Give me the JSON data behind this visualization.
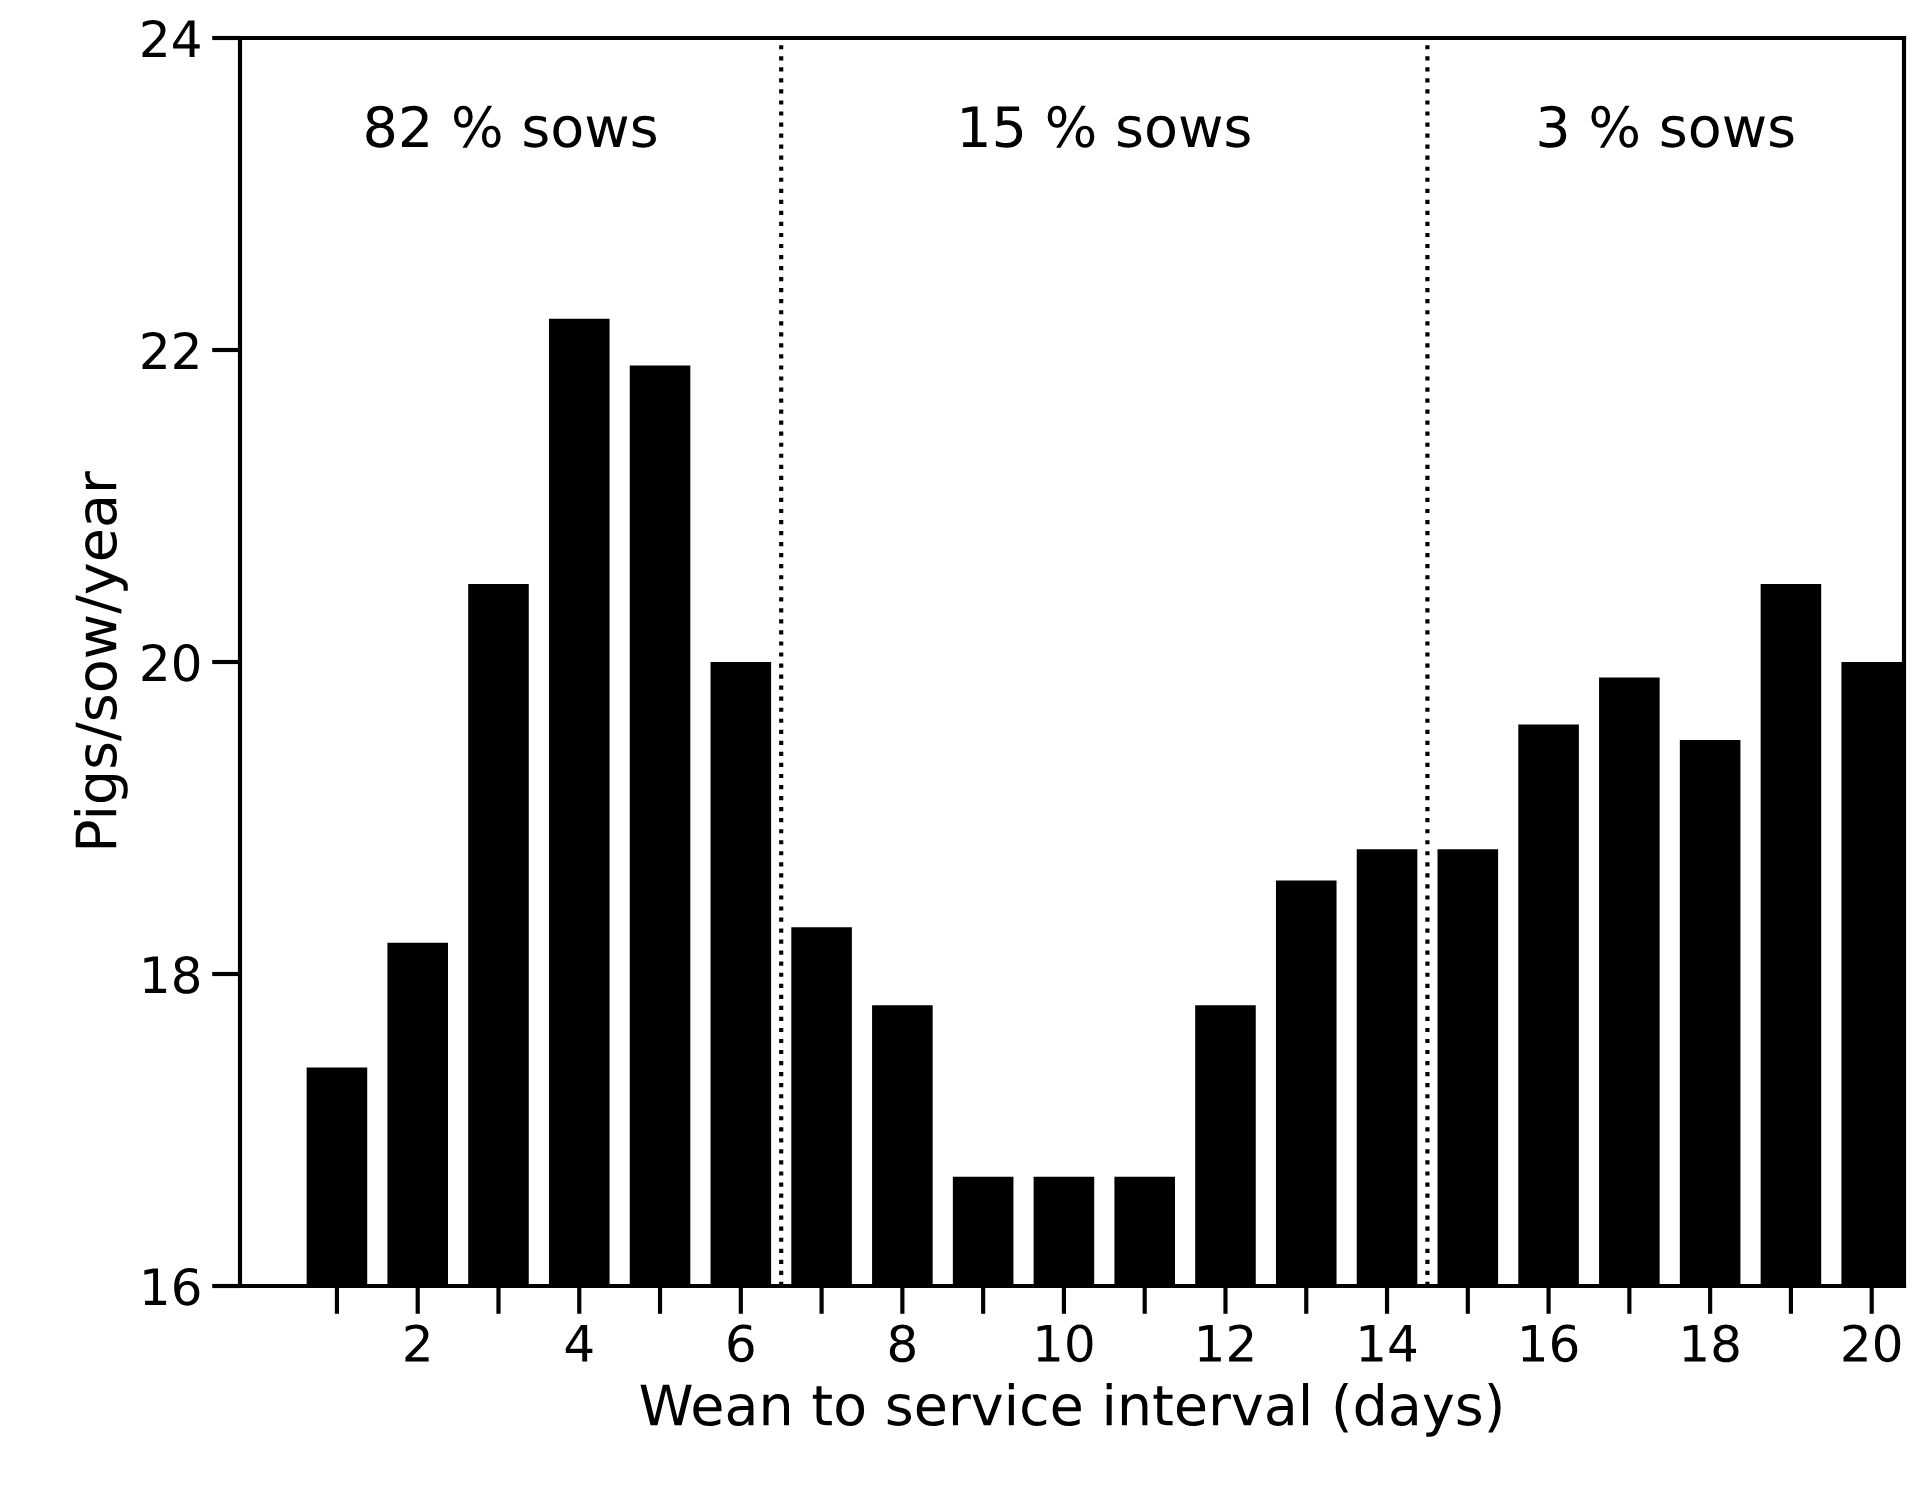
{
  "chart_data": {
    "type": "bar",
    "xlabel": "Wean to service interval (days)",
    "ylabel": "Pigs/sow/year",
    "x": [
      1,
      2,
      3,
      4,
      5,
      6,
      7,
      8,
      9,
      10,
      11,
      12,
      13,
      14,
      15,
      16,
      17,
      18,
      19,
      20
    ],
    "values": [
      17.4,
      18.2,
      20.5,
      22.2,
      21.9,
      20.0,
      18.3,
      17.8,
      16.7,
      16.7,
      16.7,
      17.8,
      18.6,
      18.8,
      18.8,
      19.6,
      19.9,
      19.5,
      20.5,
      20.0
    ],
    "color": "#000000",
    "xlim": [
      -0.2,
      20.4
    ],
    "ylim": [
      16,
      24
    ],
    "xticks": [
      {
        "value": 1,
        "label": null
      },
      2,
      {
        "value": 3,
        "label": null
      },
      4,
      {
        "value": 5,
        "label": null
      },
      6,
      {
        "value": 7,
        "label": null
      },
      8,
      {
        "value": 9,
        "label": null
      },
      10,
      {
        "value": 11,
        "label": null
      },
      12,
      {
        "value": 13,
        "label": null
      },
      14,
      {
        "value": 15,
        "label": null
      },
      16,
      {
        "value": 17,
        "label": null
      },
      18,
      {
        "value": 19,
        "label": null
      },
      20
    ],
    "yticks": [
      16,
      18,
      20,
      22,
      24
    ],
    "ref_lines": [
      {
        "axis": "x",
        "value": 6.5,
        "line_style": "dotted",
        "color": "#000000"
      },
      {
        "axis": "x",
        "value": 14.5,
        "line_style": "dotted",
        "color": "#000000"
      }
    ],
    "annotations": [
      "82 % sows",
      "15 % sows",
      "3 % sows"
    ],
    "grid": false
  }
}
